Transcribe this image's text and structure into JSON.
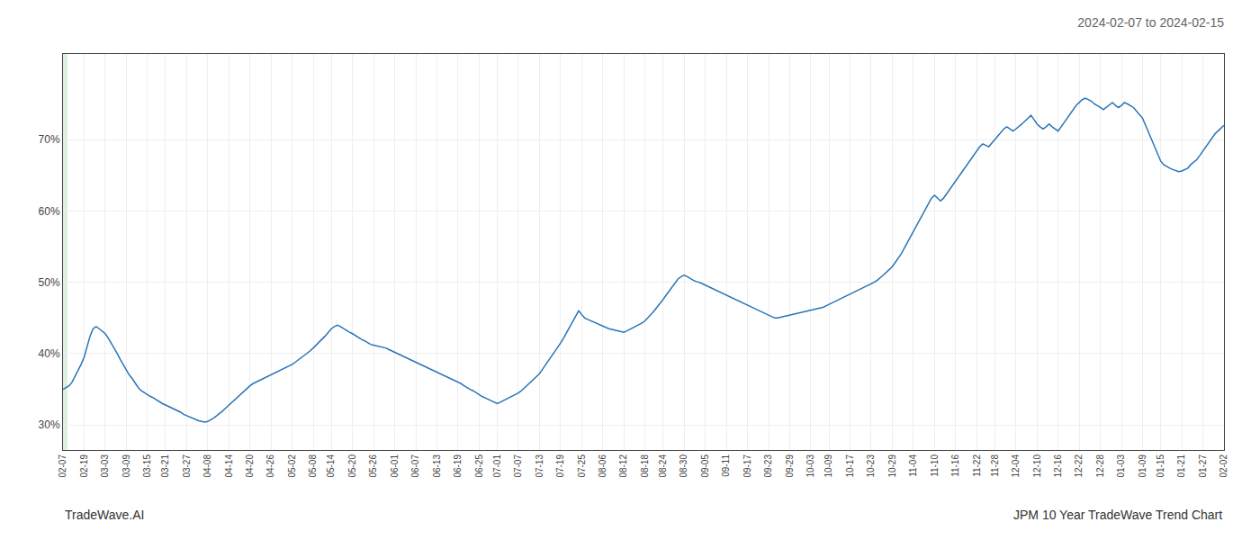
{
  "chart_data": {
    "type": "line",
    "title": "2024-02-07 to 2024-02-15",
    "annotations": [
      "TradeWave.AI",
      "JPM 10 Year TradeWave Trend Chart"
    ],
    "categories": [
      "02-07",
      null,
      null,
      null,
      null,
      null,
      null,
      "02-19",
      null,
      null,
      null,
      null,
      null,
      null,
      "03-03",
      null,
      null,
      null,
      null,
      null,
      null,
      "03-09",
      null,
      null,
      null,
      null,
      null,
      null,
      "03-15",
      null,
      null,
      null,
      null,
      null,
      "03-21",
      null,
      null,
      null,
      null,
      null,
      null,
      "03-27",
      null,
      null,
      null,
      null,
      null,
      null,
      "04-08",
      null,
      null,
      null,
      null,
      null,
      null,
      "04-14",
      null,
      null,
      null,
      null,
      null,
      null,
      "04-20",
      null,
      null,
      null,
      null,
      null,
      null,
      "04-26",
      null,
      null,
      null,
      null,
      null,
      null,
      "05-02",
      null,
      null,
      null,
      null,
      null,
      null,
      "05-08",
      null,
      null,
      null,
      null,
      null,
      "05-14",
      null,
      null,
      null,
      null,
      null,
      null,
      "05-20",
      null,
      null,
      null,
      null,
      null,
      null,
      "05-26",
      null,
      null,
      null,
      null,
      null,
      null,
      "06-01",
      null,
      null,
      null,
      null,
      null,
      null,
      "06-07",
      null,
      null,
      null,
      null,
      null,
      null,
      "06-13",
      null,
      null,
      null,
      null,
      null,
      null,
      "06-19",
      null,
      null,
      null,
      null,
      null,
      null,
      "06-25",
      null,
      null,
      null,
      null,
      null,
      "07-01",
      null,
      null,
      null,
      null,
      null,
      null,
      "07-07",
      null,
      null,
      null,
      null,
      null,
      null,
      "07-13",
      null,
      null,
      null,
      null,
      null,
      null,
      "07-19",
      null,
      null,
      null,
      null,
      null,
      null,
      "07-25",
      null,
      null,
      null,
      null,
      null,
      null,
      "08-06",
      null,
      null,
      null,
      null,
      null,
      null,
      "08-12",
      null,
      null,
      null,
      null,
      null,
      null,
      "08-18",
      null,
      null,
      null,
      null,
      null,
      "08-24",
      null,
      null,
      null,
      null,
      null,
      null,
      "08-30",
      null,
      null,
      null,
      null,
      null,
      null,
      "09-05",
      null,
      null,
      null,
      null,
      null,
      null,
      "09-11",
      null,
      null,
      null,
      null,
      null,
      null,
      "09-17",
      null,
      null,
      null,
      null,
      null,
      null,
      "09-23",
      null,
      null,
      null,
      null,
      null,
      null,
      "09-29",
      null,
      null,
      null,
      null,
      null,
      null,
      "10-03",
      null,
      null,
      null,
      null,
      null,
      "10-09",
      null,
      null,
      null,
      null,
      null,
      null,
      "10-17",
      null,
      null,
      null,
      null,
      null,
      null,
      "10-23",
      null,
      null,
      null,
      null,
      null,
      null,
      "10-29",
      null,
      null,
      null,
      null,
      null,
      null,
      "11-04",
      null,
      null,
      null,
      null,
      null,
      null,
      "11-10",
      null,
      null,
      null,
      null,
      null,
      null,
      "11-16",
      null,
      null,
      null,
      null,
      null,
      null,
      "11-22",
      null,
      null,
      null,
      null,
      null,
      "11-28",
      null,
      null,
      null,
      null,
      null,
      null,
      "12-04",
      null,
      null,
      null,
      null,
      null,
      null,
      "12-10",
      null,
      null,
      null,
      null,
      null,
      null,
      "12-16",
      null,
      null,
      null,
      null,
      null,
      null,
      "12-22",
      null,
      null,
      null,
      null,
      null,
      null,
      "12-28",
      null,
      null,
      null,
      null,
      null,
      null,
      "01-03",
      null,
      null,
      null,
      null,
      null,
      null,
      "01-09",
      null,
      null,
      null,
      null,
      null,
      "01-15",
      null,
      null,
      null,
      null,
      null,
      null,
      "01-21",
      null,
      null,
      null,
      null,
      null,
      null,
      "01-27",
      null,
      null,
      null,
      null,
      null,
      null,
      "02-02"
    ],
    "values": [
      0.35,
      0.352,
      0.355,
      0.36,
      0.368,
      0.375,
      0.385,
      0.395,
      0.41,
      0.425,
      0.435,
      0.438,
      0.435,
      0.432,
      0.428,
      0.422,
      0.415,
      0.408,
      0.4,
      0.392,
      0.385,
      0.378,
      0.37,
      0.365,
      0.358,
      0.352,
      0.348,
      0.345,
      0.342,
      0.34,
      0.338,
      0.335,
      0.332,
      0.33,
      0.328,
      0.326,
      0.325,
      0.322,
      0.32,
      0.318,
      0.315,
      0.313,
      0.312,
      0.31,
      0.308,
      0.306,
      0.305,
      0.304,
      0.305,
      0.307,
      0.31,
      0.313,
      0.316,
      0.32,
      0.324,
      0.328,
      0.332,
      0.336,
      0.34,
      0.344,
      0.348,
      0.352,
      0.355,
      0.358,
      0.36,
      0.362,
      0.364,
      0.366,
      0.368,
      0.37,
      0.372,
      0.374,
      0.376,
      0.378,
      0.38,
      0.382,
      0.385,
      0.388,
      0.391,
      0.394,
      0.397,
      0.4,
      0.404,
      0.408,
      0.412,
      0.416,
      0.42,
      0.425,
      0.43,
      0.435,
      0.438,
      0.44,
      0.438,
      0.435,
      0.432,
      0.43,
      0.428,
      0.425,
      0.422,
      0.42,
      0.418,
      0.415,
      0.413,
      0.412,
      0.411,
      0.41,
      0.409,
      0.408,
      0.406,
      0.404,
      0.402,
      0.4,
      0.398,
      0.396,
      0.394,
      0.392,
      0.39,
      0.388,
      0.386,
      0.384,
      0.382,
      0.38,
      0.378,
      0.376,
      0.374,
      0.372,
      0.37,
      0.368,
      0.366,
      0.364,
      0.362,
      0.36,
      0.358,
      0.355,
      0.352,
      0.35,
      0.348,
      0.345,
      0.342,
      0.34,
      0.338,
      0.336,
      0.334,
      0.332,
      0.33,
      0.332,
      0.334,
      0.336,
      0.338,
      0.34,
      0.342,
      0.345,
      0.348,
      0.352,
      0.356,
      0.36,
      0.364,
      0.368,
      0.372,
      0.378,
      0.384,
      0.39,
      0.396,
      0.402,
      0.408,
      0.415,
      0.422,
      0.43,
      0.438,
      0.446,
      0.454,
      0.46,
      0.455,
      0.45,
      0.448,
      0.446,
      0.444,
      0.442,
      0.44,
      0.438,
      0.436,
      0.435,
      0.434,
      0.433,
      0.432,
      0.431,
      0.43,
      0.432,
      0.434,
      0.436,
      0.438,
      0.44,
      0.443,
      0.446,
      0.45,
      0.455,
      0.46,
      0.465,
      0.47,
      0.476,
      0.482,
      0.488,
      0.494,
      0.5,
      0.505,
      0.508,
      0.51,
      0.508,
      0.505,
      0.503,
      0.501,
      0.5,
      0.498,
      0.496,
      0.494,
      0.492,
      0.49,
      0.488,
      0.486,
      0.484,
      0.482,
      0.48,
      0.478,
      0.476,
      0.474,
      0.472,
      0.47,
      0.468,
      0.466,
      0.464,
      0.462,
      0.46,
      0.458,
      0.456,
      0.454,
      0.452,
      0.45,
      0.45,
      0.451,
      0.452,
      0.453,
      0.454,
      0.455,
      0.456,
      0.457,
      0.458,
      0.459,
      0.46,
      0.461,
      0.462,
      0.463,
      0.464,
      0.465,
      0.467,
      0.469,
      0.471,
      0.473,
      0.475,
      0.477,
      0.479,
      0.481,
      0.483,
      0.485,
      0.487,
      0.489,
      0.491,
      0.493,
      0.495,
      0.497,
      0.5,
      0.503,
      0.506,
      0.51,
      0.514,
      0.518,
      0.522,
      0.528,
      0.534,
      0.54,
      0.548,
      0.556,
      0.564,
      0.572,
      0.58,
      0.588,
      0.596,
      0.604,
      0.612,
      0.618,
      0.622,
      0.618,
      0.614,
      0.618,
      0.624,
      0.63,
      0.636,
      0.642,
      0.648,
      0.654,
      0.66,
      0.666,
      0.672,
      0.678,
      0.684,
      0.69,
      0.694,
      0.692,
      0.69,
      0.695,
      0.7,
      0.705,
      0.71,
      0.715,
      0.718,
      0.715,
      0.712,
      0.715,
      0.718,
      0.722,
      0.726,
      0.73,
      0.734,
      0.728,
      0.722,
      0.718,
      0.715,
      0.718,
      0.722,
      0.718,
      0.715,
      0.712,
      0.718,
      0.724,
      0.73,
      0.736,
      0.742,
      0.748,
      0.752,
      0.756,
      0.758,
      0.756,
      0.754,
      0.75,
      0.748,
      0.745,
      0.742,
      0.745,
      0.748,
      0.752,
      0.748,
      0.745,
      0.748,
      0.752,
      0.75,
      0.748,
      0.745,
      0.74,
      0.735,
      0.73,
      0.72,
      0.71,
      0.7,
      0.69,
      0.68,
      0.67,
      0.665,
      0.662,
      0.66,
      0.658,
      0.656,
      0.655,
      0.656,
      0.658,
      0.66,
      0.665,
      0.668,
      0.672,
      0.678,
      0.684,
      0.69,
      0.696,
      0.702,
      0.708,
      0.712,
      0.716,
      0.72
    ],
    "color": "#2874b8",
    "ylim": [
      0.265,
      0.82
    ],
    "yticks": [
      {
        "value": 0.3,
        "label": "30%"
      },
      {
        "value": 0.4,
        "label": "40%"
      },
      {
        "value": 0.5,
        "label": "50%"
      },
      {
        "value": 0.6,
        "label": "60%"
      },
      {
        "value": 0.7,
        "label": "70%"
      }
    ],
    "grid": true,
    "highlight": {
      "start": 0,
      "end": 1.5,
      "color": "#c8e6c9"
    }
  }
}
